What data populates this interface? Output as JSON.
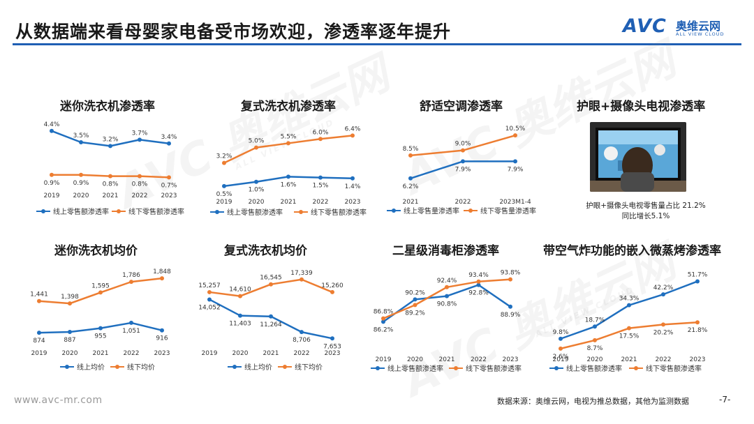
{
  "page": {
    "title": "从数据端来看母婴家电备受市场欢迎，渗透率逐年提升",
    "logo_mark": "AVC",
    "logo_cn": "奥维云网",
    "logo_en": "ALL VIEW CLOUD",
    "watermark_mark": "AVC 奥维云网",
    "watermark_en": "ALL VIEW CLOUD",
    "footer_url": "www.avc-mr.com",
    "footer_source": "数据来源：奥维云网，电视为推总数据，其他为监测数据",
    "page_number": "-7-",
    "tv_title": "护眼+摄像头电视渗透率",
    "tv_note_line1": "护眼+摄像头电视零售量占比 21.2%",
    "tv_note_line2": "同比增长5.1%"
  },
  "colors": {
    "online": "#1f6fbf",
    "offline": "#ed7d31",
    "brand": "#1f5fb4"
  },
  "chart_data": [
    {
      "id": "c1",
      "type": "line",
      "title": "迷你洗衣机渗透率",
      "categories": [
        "2019",
        "2020",
        "2021",
        "2022",
        "2023"
      ],
      "ylim": [
        0,
        5
      ],
      "series": [
        {
          "name": "线上零售额渗透率",
          "color": "online",
          "values": [
            4.4,
            3.5,
            3.2,
            3.7,
            3.4
          ],
          "labels": [
            "4.4%",
            "3.5%",
            "3.2%",
            "3.7%",
            "3.4%"
          ]
        },
        {
          "name": "线下零售额渗透率",
          "color": "offline",
          "values": [
            0.9,
            0.9,
            0.8,
            0.8,
            0.7
          ],
          "labels": [
            "0.9%",
            "0.9%",
            "0.8%",
            "0.8%",
            "0.7%"
          ]
        }
      ]
    },
    {
      "id": "c2",
      "type": "line",
      "title": "复式洗衣机渗透率",
      "categories": [
        "2019",
        "2020",
        "2021",
        "2022",
        "2023"
      ],
      "ylim": [
        0,
        7
      ],
      "series": [
        {
          "name": "线上零售额渗透率",
          "color": "online",
          "values": [
            0.5,
            1.0,
            1.6,
            1.5,
            1.4
          ],
          "labels": [
            "0.5%",
            "1.0%",
            "1.6%",
            "1.5%",
            "1.4%"
          ]
        },
        {
          "name": "线下零售额渗透率",
          "color": "offline",
          "values": [
            3.2,
            5.0,
            5.5,
            6.0,
            6.4
          ],
          "labels": [
            "3.2%",
            "5.0%",
            "5.5%",
            "6.0%",
            "6.4%"
          ]
        }
      ]
    },
    {
      "id": "c3",
      "type": "line",
      "title": "舒适空调渗透率",
      "categories": [
        "2021",
        "2022",
        "2023M1-4"
      ],
      "ylim": [
        5,
        11
      ],
      "series": [
        {
          "name": "线上零售量渗透率",
          "color": "online",
          "values": [
            6.2,
            7.9,
            7.9
          ],
          "labels": [
            "6.2%",
            "7.9%",
            "7.9%"
          ]
        },
        {
          "name": "线下零售量渗透率",
          "color": "offline",
          "values": [
            8.5,
            9.0,
            10.5
          ],
          "labels": [
            "8.5%",
            "9.0%",
            "10.5%"
          ]
        }
      ]
    },
    {
      "id": "c4",
      "type": "line",
      "title": "迷你洗衣机均价",
      "categories": [
        "2019",
        "2020",
        "2021",
        "2022",
        "2023"
      ],
      "ylim": [
        700,
        1900
      ],
      "series": [
        {
          "name": "线上均价",
          "color": "online",
          "values": [
            874,
            887,
            955,
            1051,
            916
          ],
          "labels": [
            "874",
            "887",
            "955",
            "1,051",
            "916"
          ]
        },
        {
          "name": "线下均价",
          "color": "offline",
          "values": [
            1441,
            1398,
            1595,
            1786,
            1848
          ],
          "labels": [
            "1,441",
            "1,398",
            "1,595",
            "1,786",
            "1,848"
          ]
        }
      ]
    },
    {
      "id": "c5",
      "type": "line",
      "title": "复式洗衣机均价",
      "categories": [
        "2019",
        "2020",
        "2021",
        "2022",
        "2023"
      ],
      "ylim": [
        7000,
        18000
      ],
      "series": [
        {
          "name": "线上均价",
          "color": "online",
          "values": [
            14052,
            11403,
            11264,
            8706,
            7653
          ],
          "labels": [
            "14,052",
            "11,403",
            "11,264",
            "8,706",
            "7,653"
          ]
        },
        {
          "name": "线下均价",
          "color": "offline",
          "values": [
            15257,
            14610,
            16545,
            17339,
            15260
          ],
          "labels": [
            "15,257",
            "14,610",
            "16,545",
            "17,339",
            "15,260"
          ]
        }
      ]
    },
    {
      "id": "c6",
      "type": "line",
      "title": "二星级消毒柜渗透率",
      "categories": [
        "2019",
        "2020",
        "2021",
        "2022",
        "2023"
      ],
      "ylim": [
        85,
        95
      ],
      "series": [
        {
          "name": "线上零售额渗透率",
          "color": "online",
          "values": [
            86.2,
            90.2,
            90.8,
            92.8,
            88.9
          ],
          "labels": [
            "86.2%",
            "90.2%",
            "90.8%",
            "92.8%",
            "88.9%"
          ]
        },
        {
          "name": "线下零售额渗透率",
          "color": "offline",
          "values": [
            86.8,
            89.2,
            92.4,
            93.4,
            93.8
          ],
          "labels": [
            "86.8%",
            "89.2%",
            "92.4%",
            "93.4%",
            "93.8%"
          ]
        }
      ]
    },
    {
      "id": "c7",
      "type": "line",
      "title": "带空气炸功能的嵌入微蒸烤渗透率",
      "categories": [
        "2019",
        "2020",
        "2021",
        "2022",
        "2023"
      ],
      "ylim": [
        0,
        55
      ],
      "series": [
        {
          "name": "线上零售额渗透率",
          "color": "online",
          "values": [
            9.8,
            18.7,
            34.3,
            42.2,
            51.7
          ],
          "labels": [
            "9.8%",
            "18.7%",
            "34.3%",
            "42.2%",
            "51.7%"
          ]
        },
        {
          "name": "线下零售额渗透率",
          "color": "offline",
          "values": [
            2.6,
            8.7,
            17.5,
            20.2,
            21.8
          ],
          "labels": [
            "2.6%",
            "8.7%",
            "17.5%",
            "20.2%",
            "21.8%"
          ]
        }
      ]
    }
  ]
}
